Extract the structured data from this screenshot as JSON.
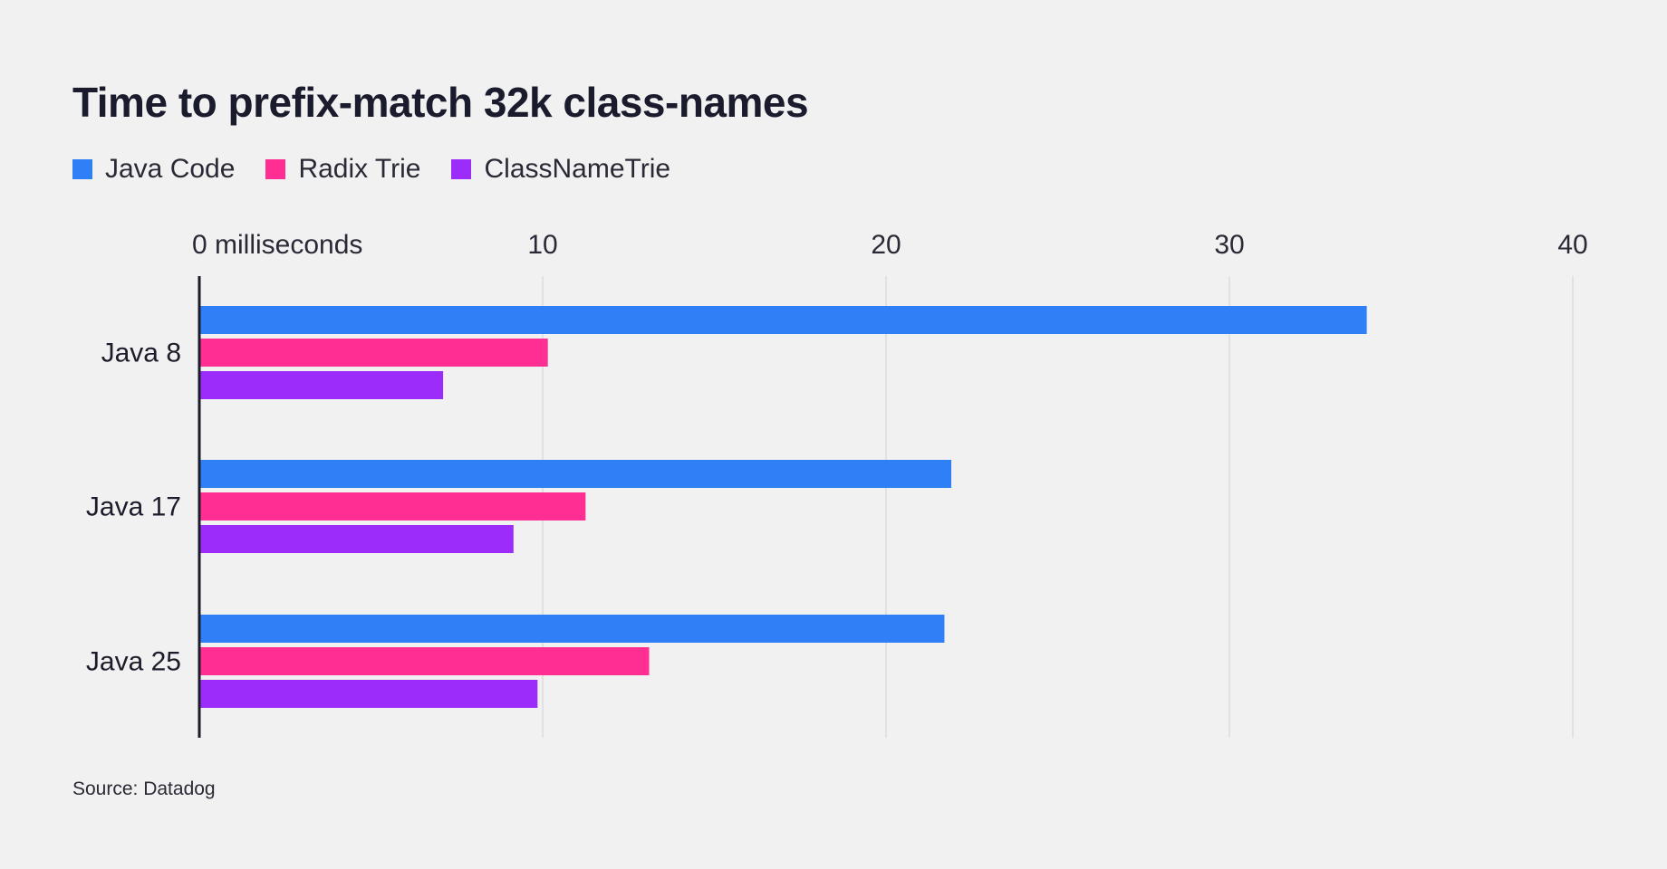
{
  "chart_data": {
    "type": "bar",
    "orientation": "horizontal",
    "title": "Time to prefix-match 32k class-names",
    "categories": [
      "Java 8",
      "Java 17",
      "Java 25"
    ],
    "series": [
      {
        "name": "Java Code",
        "color": "#2f7ff7",
        "values": [
          34.0,
          21.9,
          21.7
        ]
      },
      {
        "name": "Radix Trie",
        "color": "#ff2e93",
        "values": [
          10.15,
          11.25,
          13.1
        ]
      },
      {
        "name": "ClassNameTrie",
        "color": "#9b2cf9",
        "values": [
          7.1,
          9.15,
          9.85
        ]
      }
    ],
    "xlim": [
      0,
      40
    ],
    "ticks": [
      0,
      10,
      20,
      30,
      40
    ],
    "tick_labels": [
      "0 milliseconds",
      "10",
      "20",
      "30",
      "40"
    ],
    "xlabel": "",
    "ylabel": "",
    "grid": true,
    "legend_position": "top-left",
    "source": "Source: Datadog"
  }
}
